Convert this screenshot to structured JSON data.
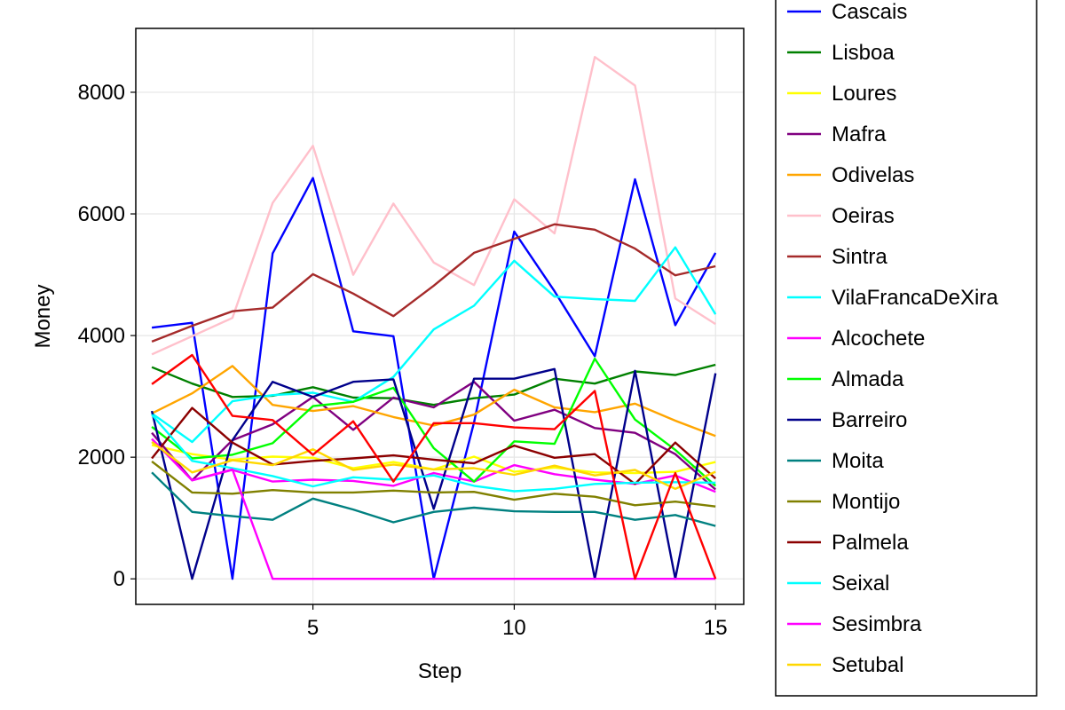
{
  "chart_data": {
    "type": "line",
    "xlabel": "Step",
    "ylabel": "Money",
    "xlim": [
      0.6,
      15.7
    ],
    "ylim": [
      -420,
      9050
    ],
    "xticks": [
      5,
      10,
      15
    ],
    "xtick_labels": [
      "5",
      "10",
      "15"
    ],
    "yticks": [
      0,
      2000,
      4000,
      6000,
      8000
    ],
    "ytick_labels": [
      "0",
      "2000",
      "4000",
      "6000",
      "8000"
    ],
    "grid": true,
    "legend_position": "right",
    "x": [
      1,
      2,
      3,
      4,
      5,
      6,
      7,
      8,
      9,
      10,
      11,
      12,
      13,
      14,
      15
    ],
    "series": [
      {
        "name": "Cascais",
        "color": "#0000ff",
        "values": [
          4130,
          4210,
          0,
          5350,
          6590,
          4070,
          3990,
          0,
          2570,
          5710,
          4730,
          3660,
          6570,
          4170,
          5360
        ]
      },
      {
        "name": "Lisboa",
        "color": "#008000",
        "values": [
          3480,
          3210,
          2990,
          3010,
          3150,
          2980,
          2970,
          2860,
          2970,
          3030,
          3290,
          3210,
          3410,
          3350,
          3520
        ]
      },
      {
        "name": "Loures",
        "color": "#ffff00",
        "values": [
          2200,
          2050,
          1960,
          2010,
          1990,
          1820,
          1920,
          1800,
          2010,
          1760,
          1830,
          1750,
          1740,
          1760,
          1920
        ]
      },
      {
        "name": "Mafra",
        "color": "#800080",
        "values": [
          2400,
          1620,
          2280,
          2540,
          2990,
          2450,
          2980,
          2820,
          3240,
          2600,
          2780,
          2480,
          2400,
          2050,
          1470
        ]
      },
      {
        "name": "Odivelas",
        "color": "#ffa500",
        "values": [
          2720,
          3050,
          3500,
          2860,
          2760,
          2840,
          2660,
          2520,
          2700,
          3110,
          2820,
          2740,
          2880,
          2600,
          2350
        ]
      },
      {
        "name": "Oeiras",
        "color": "#ffc0cb",
        "values": [
          3690,
          3990,
          4290,
          6180,
          7120,
          5000,
          6170,
          5200,
          4830,
          6240,
          5680,
          8580,
          8110,
          4610,
          4190
        ]
      },
      {
        "name": "Sintra",
        "color": "#a52a2a",
        "values": [
          3900,
          4160,
          4400,
          4460,
          5010,
          4690,
          4320,
          4820,
          5360,
          5590,
          5830,
          5740,
          5430,
          4990,
          5140
        ]
      },
      {
        "name": "VilaFrancaDeXira",
        "color": "#00ffff",
        "values": [
          2720,
          2250,
          2920,
          3020,
          3060,
          2910,
          3320,
          4100,
          4490,
          5230,
          4640,
          4600,
          4570,
          5450,
          4350
        ]
      },
      {
        "name": "Alcochete",
        "color": "#ff00ff",
        "values": [
          2300,
          1620,
          1790,
          1600,
          1630,
          1610,
          1530,
          1740,
          1600,
          1870,
          1720,
          1630,
          1560,
          1700,
          1430
        ]
      },
      {
        "name": "Almada",
        "color": "#00ff00",
        "values": [
          2500,
          1980,
          2040,
          2230,
          2840,
          2910,
          3140,
          2150,
          1600,
          2260,
          2220,
          3620,
          2620,
          2120,
          1530
        ]
      },
      {
        "name": "Barreiro",
        "color": "#00008b",
        "values": [
          2760,
          0,
          2280,
          3240,
          2990,
          3240,
          3280,
          1150,
          3290,
          3290,
          3450,
          0,
          3420,
          0,
          3380
        ]
      },
      {
        "name": "Moita",
        "color": "#008080",
        "values": [
          1750,
          1100,
          1030,
          970,
          1320,
          1140,
          930,
          1100,
          1170,
          1110,
          1100,
          1100,
          970,
          1050,
          870
        ]
      },
      {
        "name": "Montijo",
        "color": "#808000",
        "values": [
          1930,
          1420,
          1400,
          1460,
          1420,
          1420,
          1450,
          1420,
          1430,
          1300,
          1400,
          1350,
          1210,
          1270,
          1190
        ]
      },
      {
        "name": "Palmela",
        "color": "#8b0000",
        "values": [
          1980,
          2810,
          2240,
          1880,
          1940,
          1980,
          2030,
          1960,
          1900,
          2190,
          1990,
          2050,
          1560,
          2240,
          1650
        ]
      },
      {
        "name": "Seixal",
        "color": "#00ffff",
        "values": [
          2700,
          1940,
          1820,
          1690,
          1520,
          1670,
          1630,
          1700,
          1530,
          1440,
          1480,
          1560,
          1580,
          1590,
          1580
        ]
      },
      {
        "name": "Sesimbra",
        "color": "#ff00ff",
        "values": [
          2300,
          1620,
          1800,
          0,
          0,
          0,
          0,
          0,
          0,
          0,
          0,
          0,
          0,
          0,
          0
        ]
      },
      {
        "name": "Setubal",
        "color": "#ffd700",
        "values": [
          2250,
          1750,
          1950,
          1870,
          2130,
          1790,
          1880,
          1800,
          1820,
          1710,
          1860,
          1700,
          1790,
          1480,
          1760
        ]
      },
      {
        "name": "",
        "color": "#ff0000",
        "values": [
          3200,
          3680,
          2680,
          2610,
          2040,
          2590,
          1600,
          2560,
          2560,
          2490,
          2460,
          3090,
          0,
          1740,
          0
        ]
      }
    ]
  }
}
